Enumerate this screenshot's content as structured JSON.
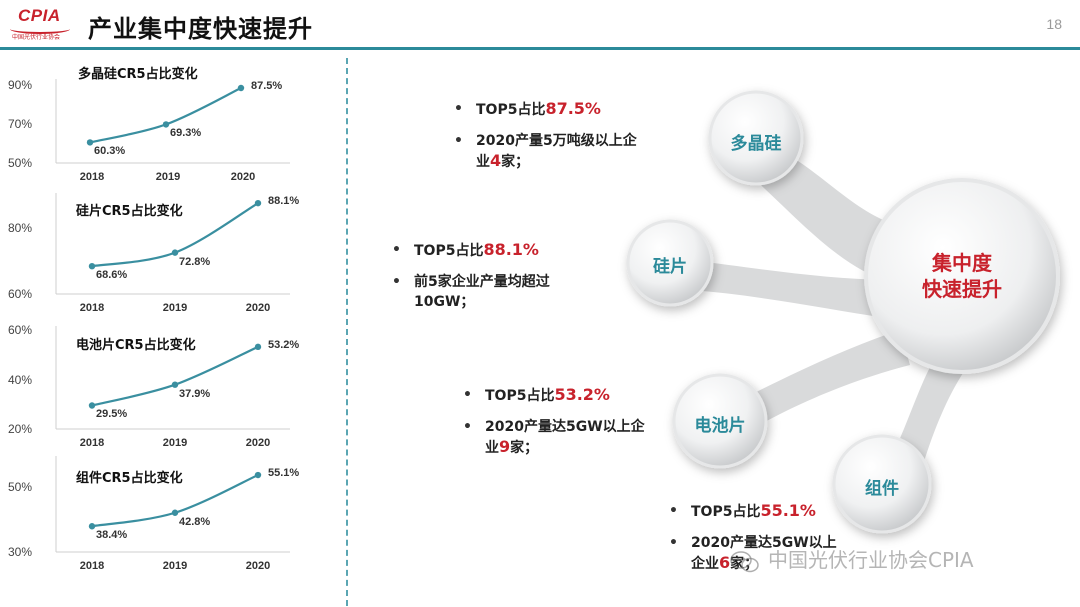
{
  "header": {
    "logo_text": "CPIA",
    "logo_sub": "中国光伏行业协会",
    "title": "产业集中度快速提升",
    "page_number": "18"
  },
  "colors": {
    "accent": "#2b8a9a",
    "highlight": "#c8222c",
    "line": "#3a8fa0"
  },
  "chart_data": [
    {
      "type": "line",
      "title": "多晶硅CR5占比变化",
      "x": [
        "2018",
        "2019",
        "2020"
      ],
      "values": [
        60.3,
        69.3,
        87.5
      ],
      "labels": [
        "60.3%",
        "69.3%",
        "87.5%"
      ],
      "yticks": [
        "90%",
        "70%",
        "50%"
      ],
      "ylim": [
        50,
        90
      ]
    },
    {
      "type": "line",
      "title": "硅片CR5占比变化",
      "x": [
        "2018",
        "2019",
        "2020"
      ],
      "values": [
        68.6,
        72.8,
        88.1
      ],
      "labels": [
        "68.6%",
        "72.8%",
        "88.1%"
      ],
      "yticks": [
        "80%",
        "60%"
      ],
      "ylim": [
        60,
        90
      ]
    },
    {
      "type": "line",
      "title": "电池片CR5占比变化",
      "x": [
        "2018",
        "2019",
        "2020"
      ],
      "values": [
        29.5,
        37.9,
        53.2
      ],
      "labels": [
        "29.5%",
        "37.9%",
        "53.2%"
      ],
      "yticks": [
        "60%",
        "40%",
        "20%"
      ],
      "ylim": [
        20,
        60
      ]
    },
    {
      "type": "line",
      "title": "组件CR5占比变化",
      "x": [
        "2018",
        "2019",
        "2020"
      ],
      "values": [
        38.4,
        42.8,
        55.1
      ],
      "labels": [
        "38.4%",
        "42.8%",
        "55.1%"
      ],
      "yticks": [
        "50%",
        "30%"
      ],
      "ylim": [
        30,
        60
      ]
    }
  ],
  "diagram": {
    "center": [
      "集中度",
      "快速提升"
    ],
    "nodes": [
      "多晶硅",
      "硅片",
      "电池片",
      "组件"
    ]
  },
  "bullets": {
    "polysilicon": {
      "l1_pre": "TOP5占比",
      "l1_val": "87.5%",
      "l2_pre": "2020产量5万吨级以上企",
      "l2_cont_pre": "业",
      "l2_num": "4",
      "l2_suf": "家；"
    },
    "wafer": {
      "l1_pre": "TOP5占比",
      "l1_val": "88.1%",
      "l2_pre": "前5家企业产量均超过",
      "l2_cont": "10GW；"
    },
    "cell": {
      "l1_pre": "TOP5占比",
      "l1_val": "53.2%",
      "l2_pre": "2020产量达5GW以上企",
      "l2_cont_pre": "业",
      "l2_num": "9",
      "l2_suf": "家；"
    },
    "module": {
      "l1_pre": "TOP5占比",
      "l1_val": "55.1%",
      "l2_pre": "2020产量达5GW以上",
      "l2_cont_pre": "企业",
      "l2_num": "6",
      "l2_suf": "家；"
    }
  },
  "watermark": "中国光伏行业协会CPIA"
}
